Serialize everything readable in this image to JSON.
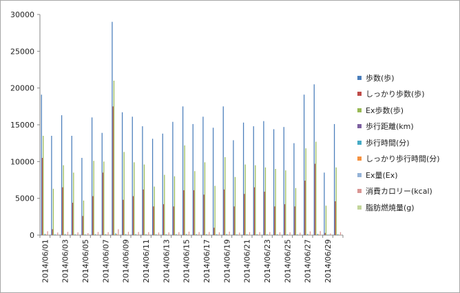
{
  "chart_data": {
    "type": "bar",
    "categories": [
      "2014/06/01",
      "2014/06/02",
      "2014/06/03",
      "2014/06/04",
      "2014/06/05",
      "2014/06/06",
      "2014/06/07",
      "2014/06/08",
      "2014/06/09",
      "2014/06/10",
      "2014/06/11",
      "2014/06/12",
      "2014/06/13",
      "2014/06/14",
      "2014/06/15",
      "2014/06/16",
      "2014/06/17",
      "2014/06/18",
      "2014/06/19",
      "2014/06/20",
      "2014/06/21",
      "2014/06/22",
      "2014/06/23",
      "2014/06/24",
      "2014/06/25",
      "2014/06/26",
      "2014/06/27",
      "2014/06/28",
      "2014/06/29",
      "2014/06/30"
    ],
    "x_tick_labels": [
      "2014/06/01",
      "2014/06/03",
      "2014/06/05",
      "2014/06/07",
      "2014/06/09",
      "2014/06/11",
      "2014/06/13",
      "2014/06/15",
      "2014/06/17",
      "2014/06/19",
      "2014/06/21",
      "2014/06/23",
      "2014/06/25",
      "2014/06/27",
      "2014/06/29"
    ],
    "ylim": [
      0,
      30000
    ],
    "yticks": [
      0,
      5000,
      10000,
      15000,
      20000,
      25000,
      30000
    ],
    "y_tick_labels": [
      "0",
      "5000",
      "10000",
      "15000",
      "20000",
      "25000",
      "30000"
    ],
    "grid": false,
    "legend_position": "right",
    "series": [
      {
        "name": "歩数(歩)",
        "color": "#4a7ebb",
        "values": [
          19100,
          13500,
          16300,
          13500,
          10500,
          16000,
          13900,
          29000,
          16700,
          16100,
          14800,
          13100,
          13800,
          15400,
          17500,
          15100,
          16100,
          14600,
          17500,
          12900,
          15300,
          14800,
          15500,
          14400,
          14700,
          12500,
          19100,
          20500,
          8500,
          15100
        ]
      },
      {
        "name": "しっかり歩数(歩)",
        "color": "#be4b48",
        "values": [
          10500,
          800,
          6500,
          4400,
          2600,
          5300,
          8500,
          17500,
          4800,
          5300,
          6200,
          3900,
          4200,
          3900,
          6100,
          6100,
          5500,
          1000,
          6200,
          3900,
          5600,
          6500,
          5900,
          3900,
          4200,
          3900,
          7400,
          9700,
          300,
          4600
        ]
      },
      {
        "name": "Ex歩数(歩)",
        "color": "#98b954",
        "values": [
          13500,
          6300,
          9500,
          8500,
          4700,
          10100,
          10000,
          21000,
          11300,
          9900,
          9600,
          6600,
          8200,
          8000,
          12200,
          8700,
          9900,
          6700,
          10600,
          7900,
          9600,
          9500,
          9200,
          9000,
          8800,
          6400,
          11800,
          12700,
          4000,
          9200
        ]
      },
      {
        "name": "歩行距離(km)",
        "color": "#7d60a0",
        "values": [
          13,
          9,
          11,
          9,
          7,
          11,
          9,
          20,
          11,
          11,
          10,
          9,
          9,
          10,
          12,
          10,
          11,
          10,
          12,
          9,
          10,
          10,
          10,
          10,
          10,
          8,
          13,
          14,
          6,
          10
        ]
      },
      {
        "name": "歩行時間(分)",
        "color": "#46aac5",
        "values": [
          160,
          110,
          140,
          110,
          90,
          130,
          120,
          250,
          140,
          135,
          125,
          110,
          115,
          130,
          150,
          130,
          135,
          120,
          150,
          110,
          130,
          125,
          130,
          120,
          125,
          105,
          160,
          170,
          70,
          125
        ]
      },
      {
        "name": "しっかり歩行時間(分)",
        "color": "#f69240",
        "values": [
          90,
          10,
          55,
          40,
          25,
          45,
          75,
          150,
          40,
          45,
          55,
          35,
          35,
          35,
          55,
          55,
          50,
          10,
          55,
          35,
          50,
          55,
          50,
          35,
          35,
          35,
          65,
          85,
          5,
          40
        ]
      },
      {
        "name": "Ex量(Ex)",
        "color": "#95b3d7",
        "values": [
          3,
          1,
          2,
          2,
          1,
          2,
          2,
          4,
          2,
          2,
          2,
          1,
          2,
          2,
          2,
          2,
          2,
          1,
          2,
          2,
          2,
          2,
          2,
          2,
          2,
          1,
          3,
          3,
          1,
          2
        ]
      },
      {
        "name": "消費カロリー(kcal)",
        "color": "#d99694",
        "values": [
          520,
          350,
          430,
          370,
          280,
          420,
          400,
          800,
          440,
          420,
          400,
          350,
          370,
          400,
          460,
          410,
          420,
          370,
          460,
          340,
          400,
          400,
          410,
          380,
          380,
          330,
          500,
          540,
          220,
          400
        ]
      },
      {
        "name": "脂肪燃焼量(g)",
        "color": "#c3d69b",
        "values": [
          30,
          20,
          25,
          22,
          16,
          25,
          24,
          48,
          26,
          25,
          24,
          20,
          22,
          24,
          28,
          24,
          25,
          22,
          28,
          20,
          24,
          24,
          24,
          22,
          22,
          19,
          30,
          32,
          13,
          24
        ]
      }
    ]
  }
}
